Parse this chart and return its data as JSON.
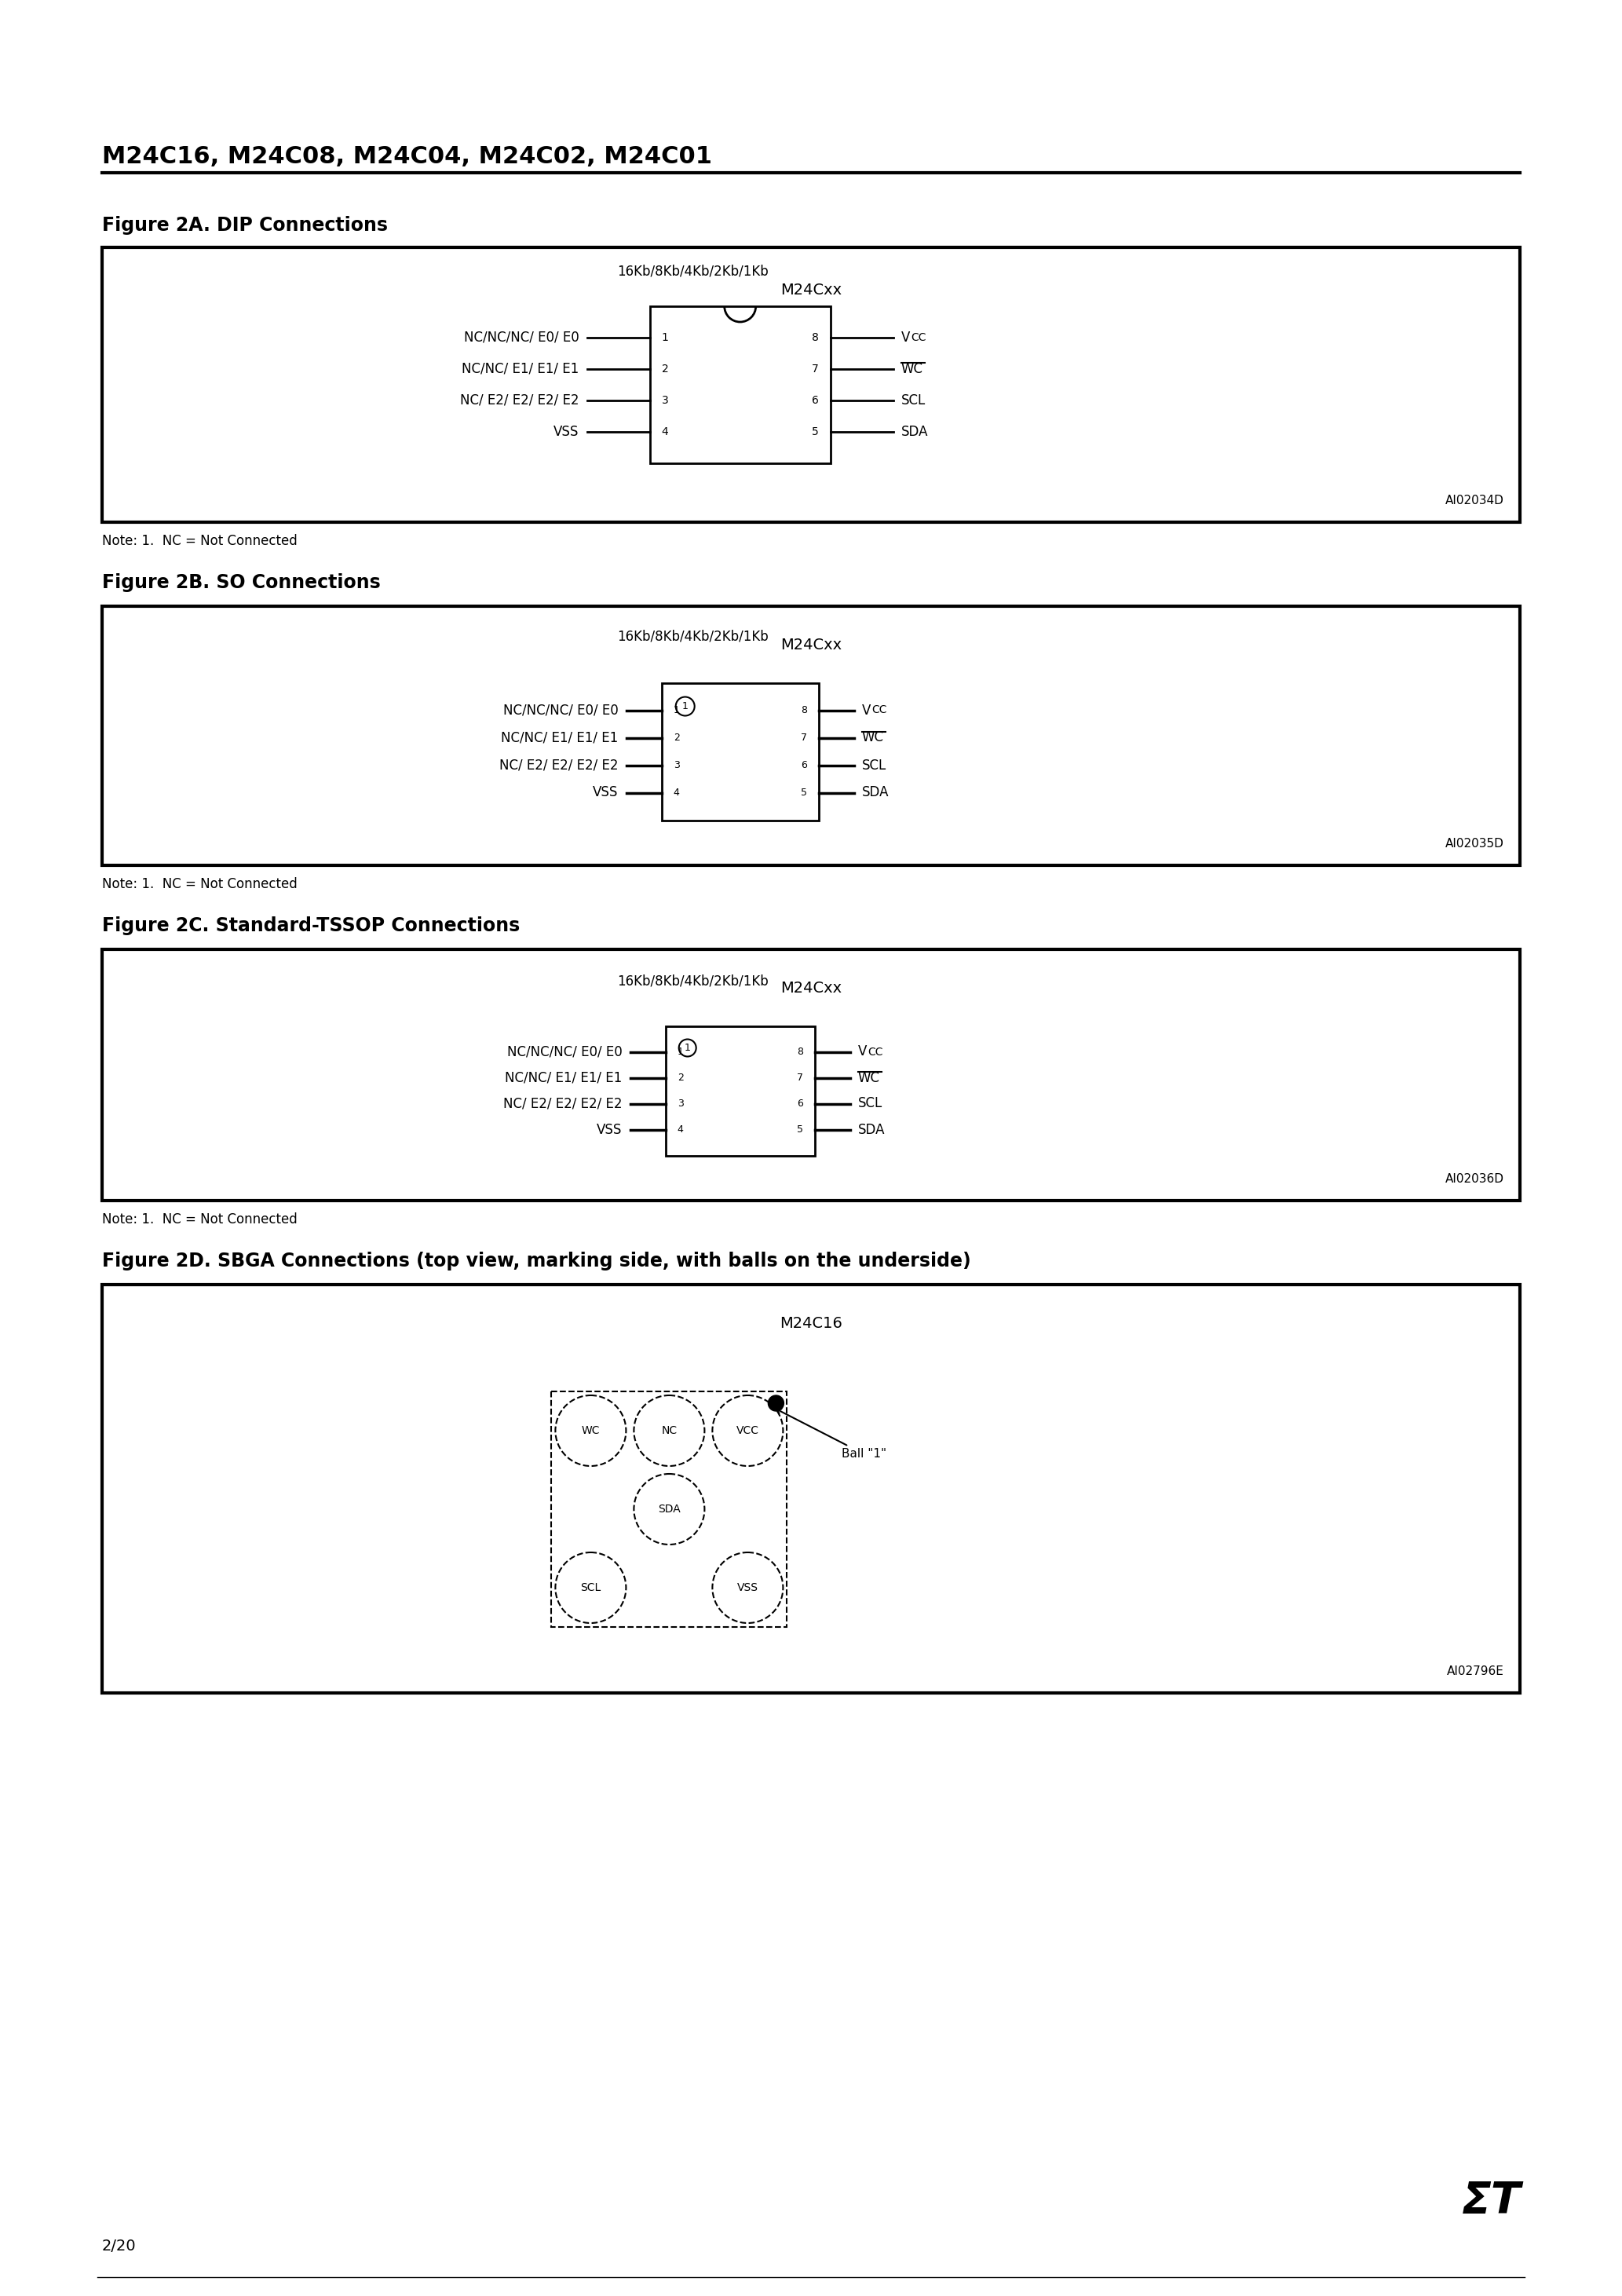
{
  "page_title": "M24C16, M24C08, M24C04, M24C02, M24C01",
  "page_number": "2/20",
  "background_color": "#ffffff",
  "text_color": "#000000",
  "fig2a_title": "Figure 2A. DIP Connections",
  "fig2b_title": "Figure 2B. SO Connections",
  "fig2c_title": "Figure 2C. Standard-TSSOP Connections",
  "fig2d_title": "Figure 2D. SBGA Connections (top view, marking side, with balls on the underside)",
  "chip_label": "M24Cxx",
  "chip_label_sbga": "M24C16",
  "pin_labels_left": [
    "16Kb/8Kb/4Kb/2Kb/1Kb",
    "NC/NC/NC/ E0/ E0",
    "NC/NC/ E1/ E1/ E1",
    "NC/ E2/ E2/ E2/ E2",
    "VSS"
  ],
  "pin_labels_right_dip": [
    "VCC",
    "WC",
    "SCL",
    "SDA"
  ],
  "pin_numbers_left": [
    "1",
    "2",
    "3",
    "4"
  ],
  "pin_numbers_right": [
    "8",
    "7",
    "6",
    "5"
  ],
  "note": "Note: 1.  NC = Not Connected",
  "fig2a_id": "AI02034D",
  "fig2b_id": "AI02035D",
  "fig2c_id": "AI02036D",
  "fig2d_id": "AI02796E",
  "sbga_labels": [
    "WC",
    "VCC",
    "SDA",
    "SCL",
    "VSS"
  ],
  "ball1_label": "Ball \"1\""
}
